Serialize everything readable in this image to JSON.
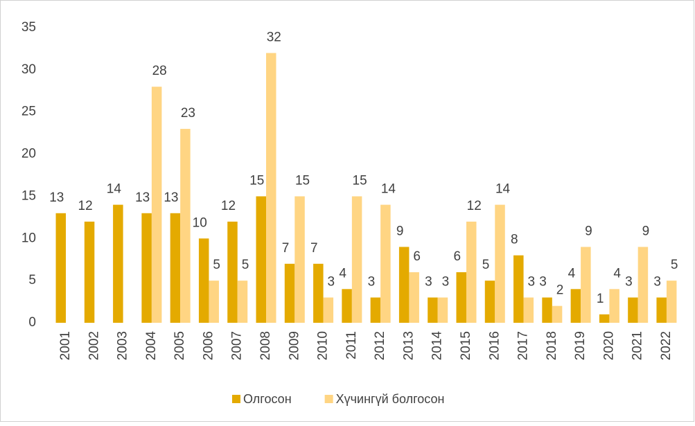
{
  "chart_data": {
    "type": "bar",
    "categories": [
      "2001",
      "2002",
      "2003",
      "2004",
      "2005",
      "2006",
      "2007",
      "2008",
      "2009",
      "2010",
      "2011",
      "2012",
      "2013",
      "2014",
      "2015",
      "2016",
      "2017",
      "2018",
      "2019",
      "2020",
      "2021",
      "2022"
    ],
    "series": [
      {
        "name": "Олгосон",
        "color": "#e4aa00",
        "values": [
          13,
          12,
          14,
          13,
          13,
          10,
          12,
          15,
          7,
          7,
          4,
          3,
          9,
          3,
          6,
          5,
          8,
          3,
          4,
          1,
          3,
          3
        ]
      },
      {
        "name": "Хүчингүй болгосон",
        "color": "#ffd583",
        "values": [
          null,
          null,
          null,
          28,
          23,
          5,
          5,
          32,
          15,
          3,
          15,
          14,
          6,
          3,
          12,
          14,
          3,
          2,
          9,
          4,
          9,
          5
        ]
      }
    ],
    "ylim": [
      0,
      35
    ],
    "yticks": [
      0,
      5,
      10,
      15,
      20,
      25,
      30,
      35
    ],
    "grid": false,
    "legend": "bottom"
  }
}
